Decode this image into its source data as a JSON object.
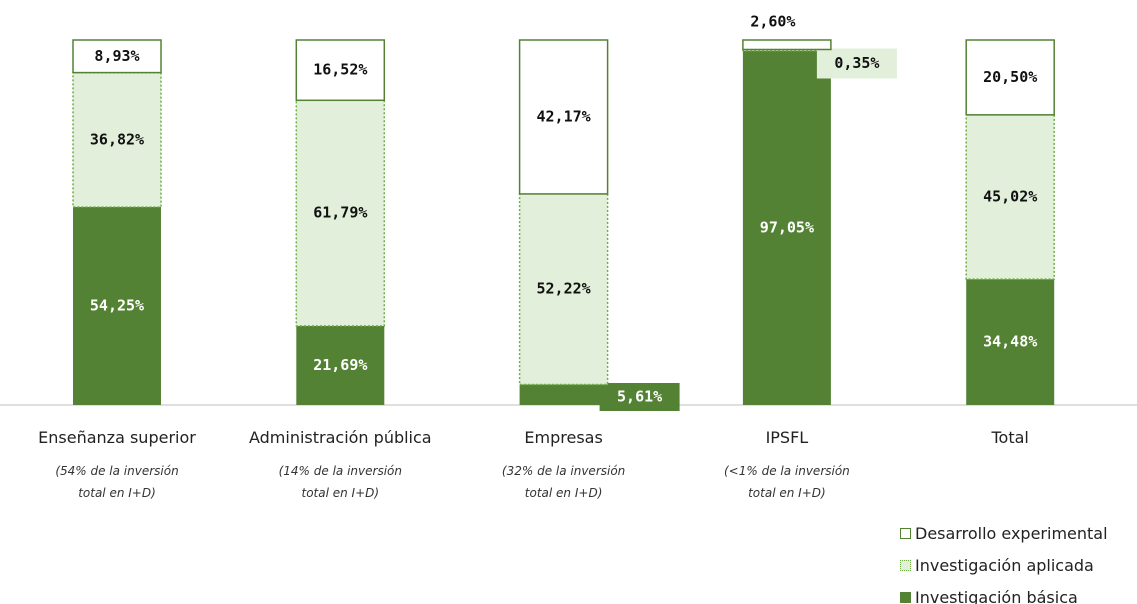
{
  "chart_data": {
    "type": "stacked-bar",
    "categories": [
      "Enseñanza superior",
      "Administración pública",
      "Empresas",
      "IPSFL",
      "Total"
    ],
    "notes": [
      "(54% de la inversión total en I+D)",
      "(14% de la inversión total en I+D)",
      "(32% de la inversión total en I+D)",
      "(<1% de la inversión total en I+D)",
      null
    ],
    "series": [
      {
        "name": "Investigación básica",
        "color": "#548235",
        "values": [
          54.25,
          21.69,
          5.61,
          97.05,
          34.48
        ],
        "value_labels": [
          "54,25%",
          "21,69%",
          "5,61%",
          "97,05%",
          "34,48%"
        ]
      },
      {
        "name": "Investigación aplicada",
        "color": "#e2efda",
        "values": [
          36.82,
          61.79,
          52.22,
          0.35,
          45.02
        ],
        "value_labels": [
          "36,82%",
          "61,79%",
          "52,22%",
          "0,35%",
          "45,02%"
        ]
      },
      {
        "name": "Desarrollo experimental",
        "color": "#ffffff",
        "values": [
          8.93,
          16.52,
          42.17,
          2.6,
          20.5
        ],
        "value_labels": [
          "8,93%",
          "16,52%",
          "42,17%",
          "2,60%",
          "20,50%"
        ]
      }
    ],
    "legend": "bottom-right"
  }
}
